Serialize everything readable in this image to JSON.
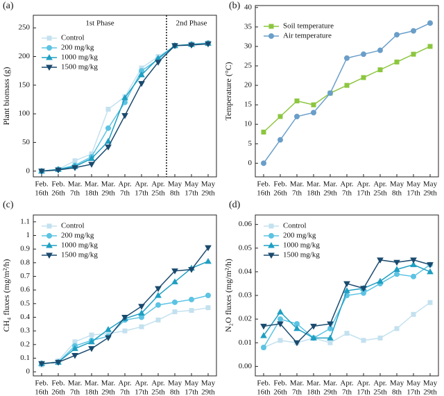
{
  "chart_data": [
    {
      "type": "line",
      "panel_label": "(a)",
      "ylabel": "Plant biomass (g)",
      "categories": [
        [
          "Feb.",
          "16th"
        ],
        [
          "Feb.",
          "26th"
        ],
        [
          "Mar.",
          "7th"
        ],
        [
          "Mar.",
          "18th"
        ],
        [
          "Mar.",
          "29th"
        ],
        [
          "Apr.",
          "7th"
        ],
        [
          "Apr.",
          "17th"
        ],
        [
          "Apr.",
          "25th"
        ],
        [
          "May",
          "8th"
        ],
        [
          "May",
          "17th"
        ],
        [
          "May",
          "29th"
        ]
      ],
      "ylim": [
        -10,
        272
      ],
      "yticks": [
        0,
        50,
        100,
        150,
        200,
        250
      ],
      "annotations": [
        "1st Phase",
        "2nd Phase"
      ],
      "legend": "upper left",
      "series": [
        {
          "name": "Control",
          "color": "#c3e1ef",
          "marker": "s",
          "values": [
            0,
            3,
            18,
            30,
            108,
            130,
            180,
            200,
            218,
            222,
            224
          ]
        },
        {
          "name": "200 mg/kg",
          "color": "#5cc3e3",
          "marker": "o",
          "values": [
            0,
            3,
            10,
            25,
            75,
            120,
            175,
            195,
            219,
            221,
            223
          ]
        },
        {
          "name": "1000 mg/kg",
          "color": "#1f9fc2",
          "marker": "^",
          "values": [
            0,
            3,
            8,
            22,
            52,
            128,
            168,
            197,
            219,
            221,
            223
          ]
        },
        {
          "name": "1500 mg/kg",
          "color": "#1a4a6e",
          "marker": "v",
          "values": [
            0,
            2,
            6,
            12,
            42,
            97,
            153,
            190,
            219,
            220,
            222
          ]
        }
      ]
    },
    {
      "type": "line",
      "panel_label": "(b)",
      "ylabel": "Temperature (°C)",
      "categories": [
        [
          "Feb.",
          "16th"
        ],
        [
          "Feb.",
          "26th"
        ],
        [
          "Mar.",
          "7th"
        ],
        [
          "Mar.",
          "18th"
        ],
        [
          "Mar.",
          "29th"
        ],
        [
          "Apr.",
          "7th"
        ],
        [
          "Apr.",
          "17th"
        ],
        [
          "Apr.",
          "25th"
        ],
        [
          "May",
          "8th"
        ],
        [
          "May",
          "17th"
        ],
        [
          "May",
          "29th"
        ]
      ],
      "ylim": [
        -3.5,
        40.5
      ],
      "yticks": [
        0,
        5,
        10,
        15,
        20,
        25,
        30,
        35,
        40
      ],
      "legend": "upper left",
      "series": [
        {
          "name": "Soil temperature",
          "color": "#8cc63f",
          "marker": "s",
          "values": [
            8,
            12,
            16,
            15,
            18,
            20,
            22,
            24,
            26,
            28,
            30
          ]
        },
        {
          "name": "Air temperature",
          "color": "#6a9ec9",
          "marker": "o",
          "values": [
            0,
            6,
            12,
            13,
            18,
            27,
            28,
            29,
            33,
            34,
            36
          ]
        }
      ]
    },
    {
      "type": "line",
      "panel_label": "(c)",
      "ylabel": "CH₄ fluxes (mg/m²/h)",
      "categories": [
        [
          "Feb.",
          "16th"
        ],
        [
          "Feb.",
          "26th"
        ],
        [
          "Mar.",
          "7th"
        ],
        [
          "Mar.",
          "18th"
        ],
        [
          "Mar.",
          "29th"
        ],
        [
          "Apr.",
          "7th"
        ],
        [
          "Apr.",
          "17th"
        ],
        [
          "Apr.",
          "25th"
        ],
        [
          "May",
          "8th"
        ],
        [
          "May",
          "17th"
        ],
        [
          "May",
          "29th"
        ]
      ],
      "ylim": [
        -0.03,
        1.15
      ],
      "yticks": [
        0,
        0.1,
        0.2,
        0.3,
        0.4,
        0.5,
        0.6,
        0.7,
        0.8,
        0.9,
        1,
        1.1
      ],
      "legend": "upper left",
      "series": [
        {
          "name": "Control",
          "color": "#c3e1ef",
          "marker": "s",
          "values": [
            0.05,
            0.08,
            0.22,
            0.27,
            0.28,
            0.3,
            0.33,
            0.38,
            0.44,
            0.45,
            0.47
          ]
        },
        {
          "name": "200 mg/kg",
          "color": "#5cc3e3",
          "marker": "o",
          "values": [
            0.06,
            0.07,
            0.19,
            0.23,
            0.26,
            0.38,
            0.4,
            0.49,
            0.51,
            0.53,
            0.56
          ]
        },
        {
          "name": "1000 mg/kg",
          "color": "#1f9fc2",
          "marker": "^",
          "values": [
            0.06,
            0.07,
            0.17,
            0.22,
            0.31,
            0.39,
            0.43,
            0.56,
            0.66,
            0.76,
            0.81
          ]
        },
        {
          "name": "1500 mg/kg",
          "color": "#1a4a6e",
          "marker": "v",
          "values": [
            0.06,
            0.07,
            0.12,
            0.17,
            0.25,
            0.4,
            0.48,
            0.61,
            0.74,
            0.75,
            0.91
          ]
        }
      ]
    },
    {
      "type": "line",
      "panel_label": "(d)",
      "ylabel": "N₂O fluxes (mg/m²/h)",
      "categories": [
        [
          "Feb.",
          "16th"
        ],
        [
          "Feb.",
          "26th"
        ],
        [
          "Mar.",
          "7th"
        ],
        [
          "Mar.",
          "18th"
        ],
        [
          "Mar.",
          "29th"
        ],
        [
          "Apr.",
          "7th"
        ],
        [
          "Apr.",
          "17th"
        ],
        [
          "Apr.",
          "25th"
        ],
        [
          "May",
          "8th"
        ],
        [
          "May",
          "17th"
        ],
        [
          "May",
          "29th"
        ]
      ],
      "ylim": [
        -0.004,
        0.064
      ],
      "yticks": [
        {
          "value": 0,
          "label": "0.00"
        },
        {
          "value": 0.01,
          "label": "0.01"
        },
        {
          "value": 0.02,
          "label": "0.02"
        },
        {
          "value": 0.03,
          "label": "0.03"
        },
        {
          "value": 0.04,
          "label": "0.04"
        },
        {
          "value": 0.05,
          "label": "0.05"
        },
        {
          "value": 0.06,
          "label": "0.06"
        }
      ],
      "legend": "upper left",
      "series": [
        {
          "name": "Control",
          "color": "#c3e1ef",
          "marker": "s",
          "values": [
            0.008,
            0.011,
            0.01,
            0.012,
            0.01,
            0.014,
            0.011,
            0.012,
            0.016,
            0.022,
            0.027
          ]
        },
        {
          "name": "200 mg/kg",
          "color": "#5cc3e3",
          "marker": "o",
          "values": [
            0.008,
            0.02,
            0.018,
            0.012,
            0.016,
            0.03,
            0.031,
            0.035,
            0.039,
            0.038,
            0.043
          ]
        },
        {
          "name": "1000 mg/kg",
          "color": "#1f9fc2",
          "marker": "^",
          "values": [
            0.013,
            0.023,
            0.016,
            0.012,
            0.012,
            0.032,
            0.033,
            0.036,
            0.041,
            0.043,
            0.04
          ]
        },
        {
          "name": "1500 mg/kg",
          "color": "#1a4a6e",
          "marker": "v",
          "values": [
            0.017,
            0.018,
            0.01,
            0.017,
            0.018,
            0.035,
            0.033,
            0.045,
            0.044,
            0.045,
            0.043
          ]
        }
      ]
    }
  ]
}
